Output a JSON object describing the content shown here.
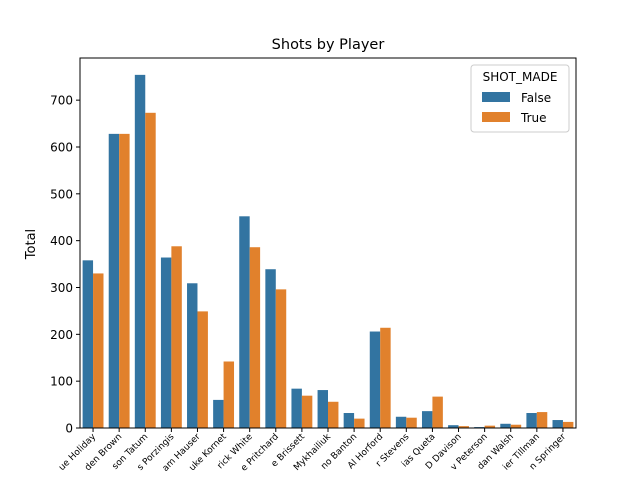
{
  "chart_data": {
    "type": "bar",
    "title": "Shots by Player",
    "xlabel": "",
    "ylabel": "Total",
    "ylim": [
      0,
      790
    ],
    "yticks": [
      0,
      100,
      200,
      300,
      400,
      500,
      600,
      700
    ],
    "categories": [
      "ue Holiday",
      "den Brown",
      "son Tatum",
      "s Porzingis",
      "am Hauser",
      "uke Kornet",
      "rick White",
      "e Pritchard",
      "e Brissett",
      "Mykhailiuk",
      "no Banton",
      "Al Horford",
      "r Stevens",
      "ias Queta",
      "D Davison",
      "v Peterson",
      "dan Walsh",
      "ier Tillman",
      "n Springer"
    ],
    "legend": {
      "title": "SHOT_MADE",
      "placement": "top-right"
    },
    "series": [
      {
        "name": "False",
        "color": "#3274a1",
        "values": [
          358,
          628,
          754,
          364,
          309,
          60,
          452,
          339,
          84,
          81,
          32,
          206,
          24,
          36,
          6,
          2,
          9,
          32,
          17
        ]
      },
      {
        "name": "True",
        "color": "#e1812c",
        "values": [
          330,
          628,
          673,
          388,
          249,
          142,
          386,
          296,
          69,
          56,
          20,
          214,
          22,
          67,
          4,
          5,
          7,
          34,
          13
        ]
      }
    ]
  }
}
